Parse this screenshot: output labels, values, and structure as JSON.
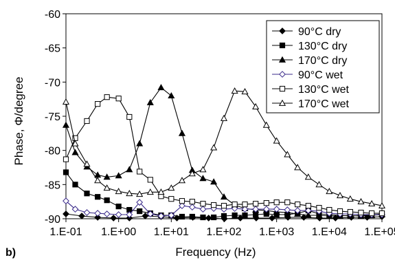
{
  "chart_data": {
    "type": "line",
    "panel_label": "b)",
    "xlabel": "Frequency (Hz)",
    "ylabel": "Phase, Φ/degree",
    "x_scale": "log",
    "xlim": [
      0.1,
      100000
    ],
    "ylim": [
      -90,
      -60
    ],
    "x_tick_labels": [
      "1.E-01",
      "1.E+00",
      "1.E+01",
      "1.E+02",
      "1.E+03",
      "1.E+04",
      "1.E+05"
    ],
    "y_tick_labels": [
      "-60",
      "-65",
      "-70",
      "-75",
      "-80",
      "-85",
      "-90"
    ],
    "grid": false,
    "legend_position": "top-right",
    "series": [
      {
        "name": "90°C dry",
        "marker": "filled-diamond",
        "color": "#000000",
        "x": [
          0.1,
          0.2,
          0.4,
          0.8,
          1.6,
          3.2,
          6.4,
          12.8,
          25.6,
          51.2,
          102,
          205,
          410,
          819,
          1640,
          3280,
          6550,
          13100,
          26200,
          52400,
          100000
        ],
        "y": [
          -89.3,
          -89.6,
          -89.8,
          -89.9,
          -89.9,
          -89.6,
          -89.7,
          -89.9,
          -89.8,
          -89.9,
          -90.0,
          -89.9,
          -89.9,
          -89.9,
          -89.8,
          -89.8,
          -89.9,
          -89.9,
          -89.8,
          -89.8,
          -89.7
        ]
      },
      {
        "name": "130°C dry",
        "marker": "filled-square",
        "color": "#000000",
        "x": [
          0.1,
          0.15,
          0.25,
          0.4,
          0.6,
          1.0,
          1.6,
          2.5,
          4.0,
          6.4,
          10,
          16,
          25,
          40,
          64,
          100,
          160,
          250,
          400,
          640,
          1000,
          1600,
          2500,
          4000,
          6400,
          10000,
          16000,
          25000,
          40000,
          64000,
          100000
        ],
        "y": [
          -83.2,
          -85.0,
          -86.3,
          -86.8,
          -87.3,
          -88.2,
          -88.7,
          -88.9,
          -89.2,
          -89.5,
          -89.5,
          -89.7,
          -89.7,
          -89.8,
          -89.8,
          -89.6,
          -89.5,
          -89.5,
          -89.4,
          -89.3,
          -89.4,
          -89.4,
          -89.2,
          -88.8,
          -89.3,
          -89.4,
          -89.5,
          -89.6,
          -89.5,
          -89.5,
          -89.3
        ]
      },
      {
        "name": "170°C dry",
        "marker": "filled-triangle",
        "color": "#000000",
        "x": [
          0.1,
          0.15,
          0.25,
          0.4,
          0.6,
          1.0,
          1.6,
          2.5,
          4.0,
          6.4,
          10,
          16,
          25,
          40,
          64,
          100,
          160,
          250,
          400,
          640,
          1000,
          1600,
          2500,
          4000,
          6400,
          10000,
          16000,
          25000,
          40000,
          64000,
          100000
        ],
        "y": [
          -76.3,
          -80.3,
          -82.4,
          -83.6,
          -83.9,
          -83.7,
          -82.8,
          -79.0,
          -73.0,
          -70.8,
          -72.0,
          -77.5,
          -82.9,
          -84.1,
          -84.6,
          -86.8,
          -88.0,
          -88.5,
          -88.7,
          -88.8,
          -89.0,
          -89.1,
          -89.3,
          -89.5,
          -89.5,
          -89.6,
          -89.6,
          -89.5,
          -89.6,
          -89.5,
          -89.4
        ]
      },
      {
        "name": "90°C wet",
        "marker": "open-diamond",
        "color": "#3a2a8a",
        "x": [
          0.1,
          0.15,
          0.25,
          0.4,
          0.6,
          1.0,
          1.6,
          2.5,
          4.0,
          6.4,
          10,
          16,
          25,
          40,
          64,
          100,
          160,
          250,
          400,
          640,
          1000,
          1600,
          2500,
          4000,
          6400,
          10000,
          16000,
          25000,
          40000,
          64000,
          100000
        ],
        "y": [
          -87.4,
          -88.6,
          -89.1,
          -89.2,
          -89.3,
          -89.4,
          -89.4,
          -87.6,
          -89.3,
          -89.6,
          -89.5,
          -88.1,
          -88.3,
          -88.6,
          -88.5,
          -88.6,
          -88.5,
          -88.6,
          -88.6,
          -88.6,
          -88.6,
          -88.7,
          -88.8,
          -88.8,
          -88.9,
          -89.2,
          -89.3,
          -89.3,
          -89.4,
          -89.4,
          -89.4
        ]
      },
      {
        "name": "130°C wet",
        "marker": "open-square",
        "color": "#000000",
        "x": [
          0.1,
          0.15,
          0.25,
          0.4,
          0.6,
          1.0,
          1.6,
          2.5,
          4.0,
          6.4,
          10,
          16,
          25,
          40,
          64,
          100,
          160,
          250,
          400,
          640,
          1000,
          1600,
          2500,
          4000,
          6400,
          10000,
          16000,
          25000,
          40000,
          64000,
          100000
        ],
        "y": [
          -81.3,
          -78.2,
          -75.7,
          -73.2,
          -72.2,
          -72.4,
          -75.1,
          -83.1,
          -84.3,
          -86.7,
          -87.1,
          -87.4,
          -87.5,
          -87.8,
          -88.0,
          -88.1,
          -87.9,
          -87.9,
          -87.8,
          -87.7,
          -87.6,
          -87.6,
          -87.9,
          -88.1,
          -88.4,
          -88.7,
          -88.9,
          -89.0,
          -89.1,
          -89.2,
          -89.2
        ]
      },
      {
        "name": "170°C wet",
        "marker": "open-triangle",
        "color": "#000000",
        "x": [
          0.1,
          0.15,
          0.25,
          0.4,
          0.6,
          1.0,
          1.6,
          2.5,
          4.0,
          6.4,
          10,
          16,
          25,
          40,
          64,
          100,
          160,
          250,
          400,
          640,
          1000,
          1600,
          2500,
          4000,
          6400,
          10000,
          16000,
          25000,
          40000,
          64000,
          100000
        ],
        "y": [
          -72.9,
          -79.0,
          -82.0,
          -84.4,
          -85.5,
          -86.0,
          -86.3,
          -86.4,
          -86.1,
          -86.1,
          -85.5,
          -84.4,
          -83.4,
          -82.8,
          -79.6,
          -75.3,
          -71.3,
          -71.4,
          -73.6,
          -76.3,
          -78.6,
          -80.6,
          -82.5,
          -83.9,
          -85.0,
          -86.0,
          -86.6,
          -87.1,
          -87.5,
          -87.8,
          -88.1
        ]
      }
    ]
  }
}
